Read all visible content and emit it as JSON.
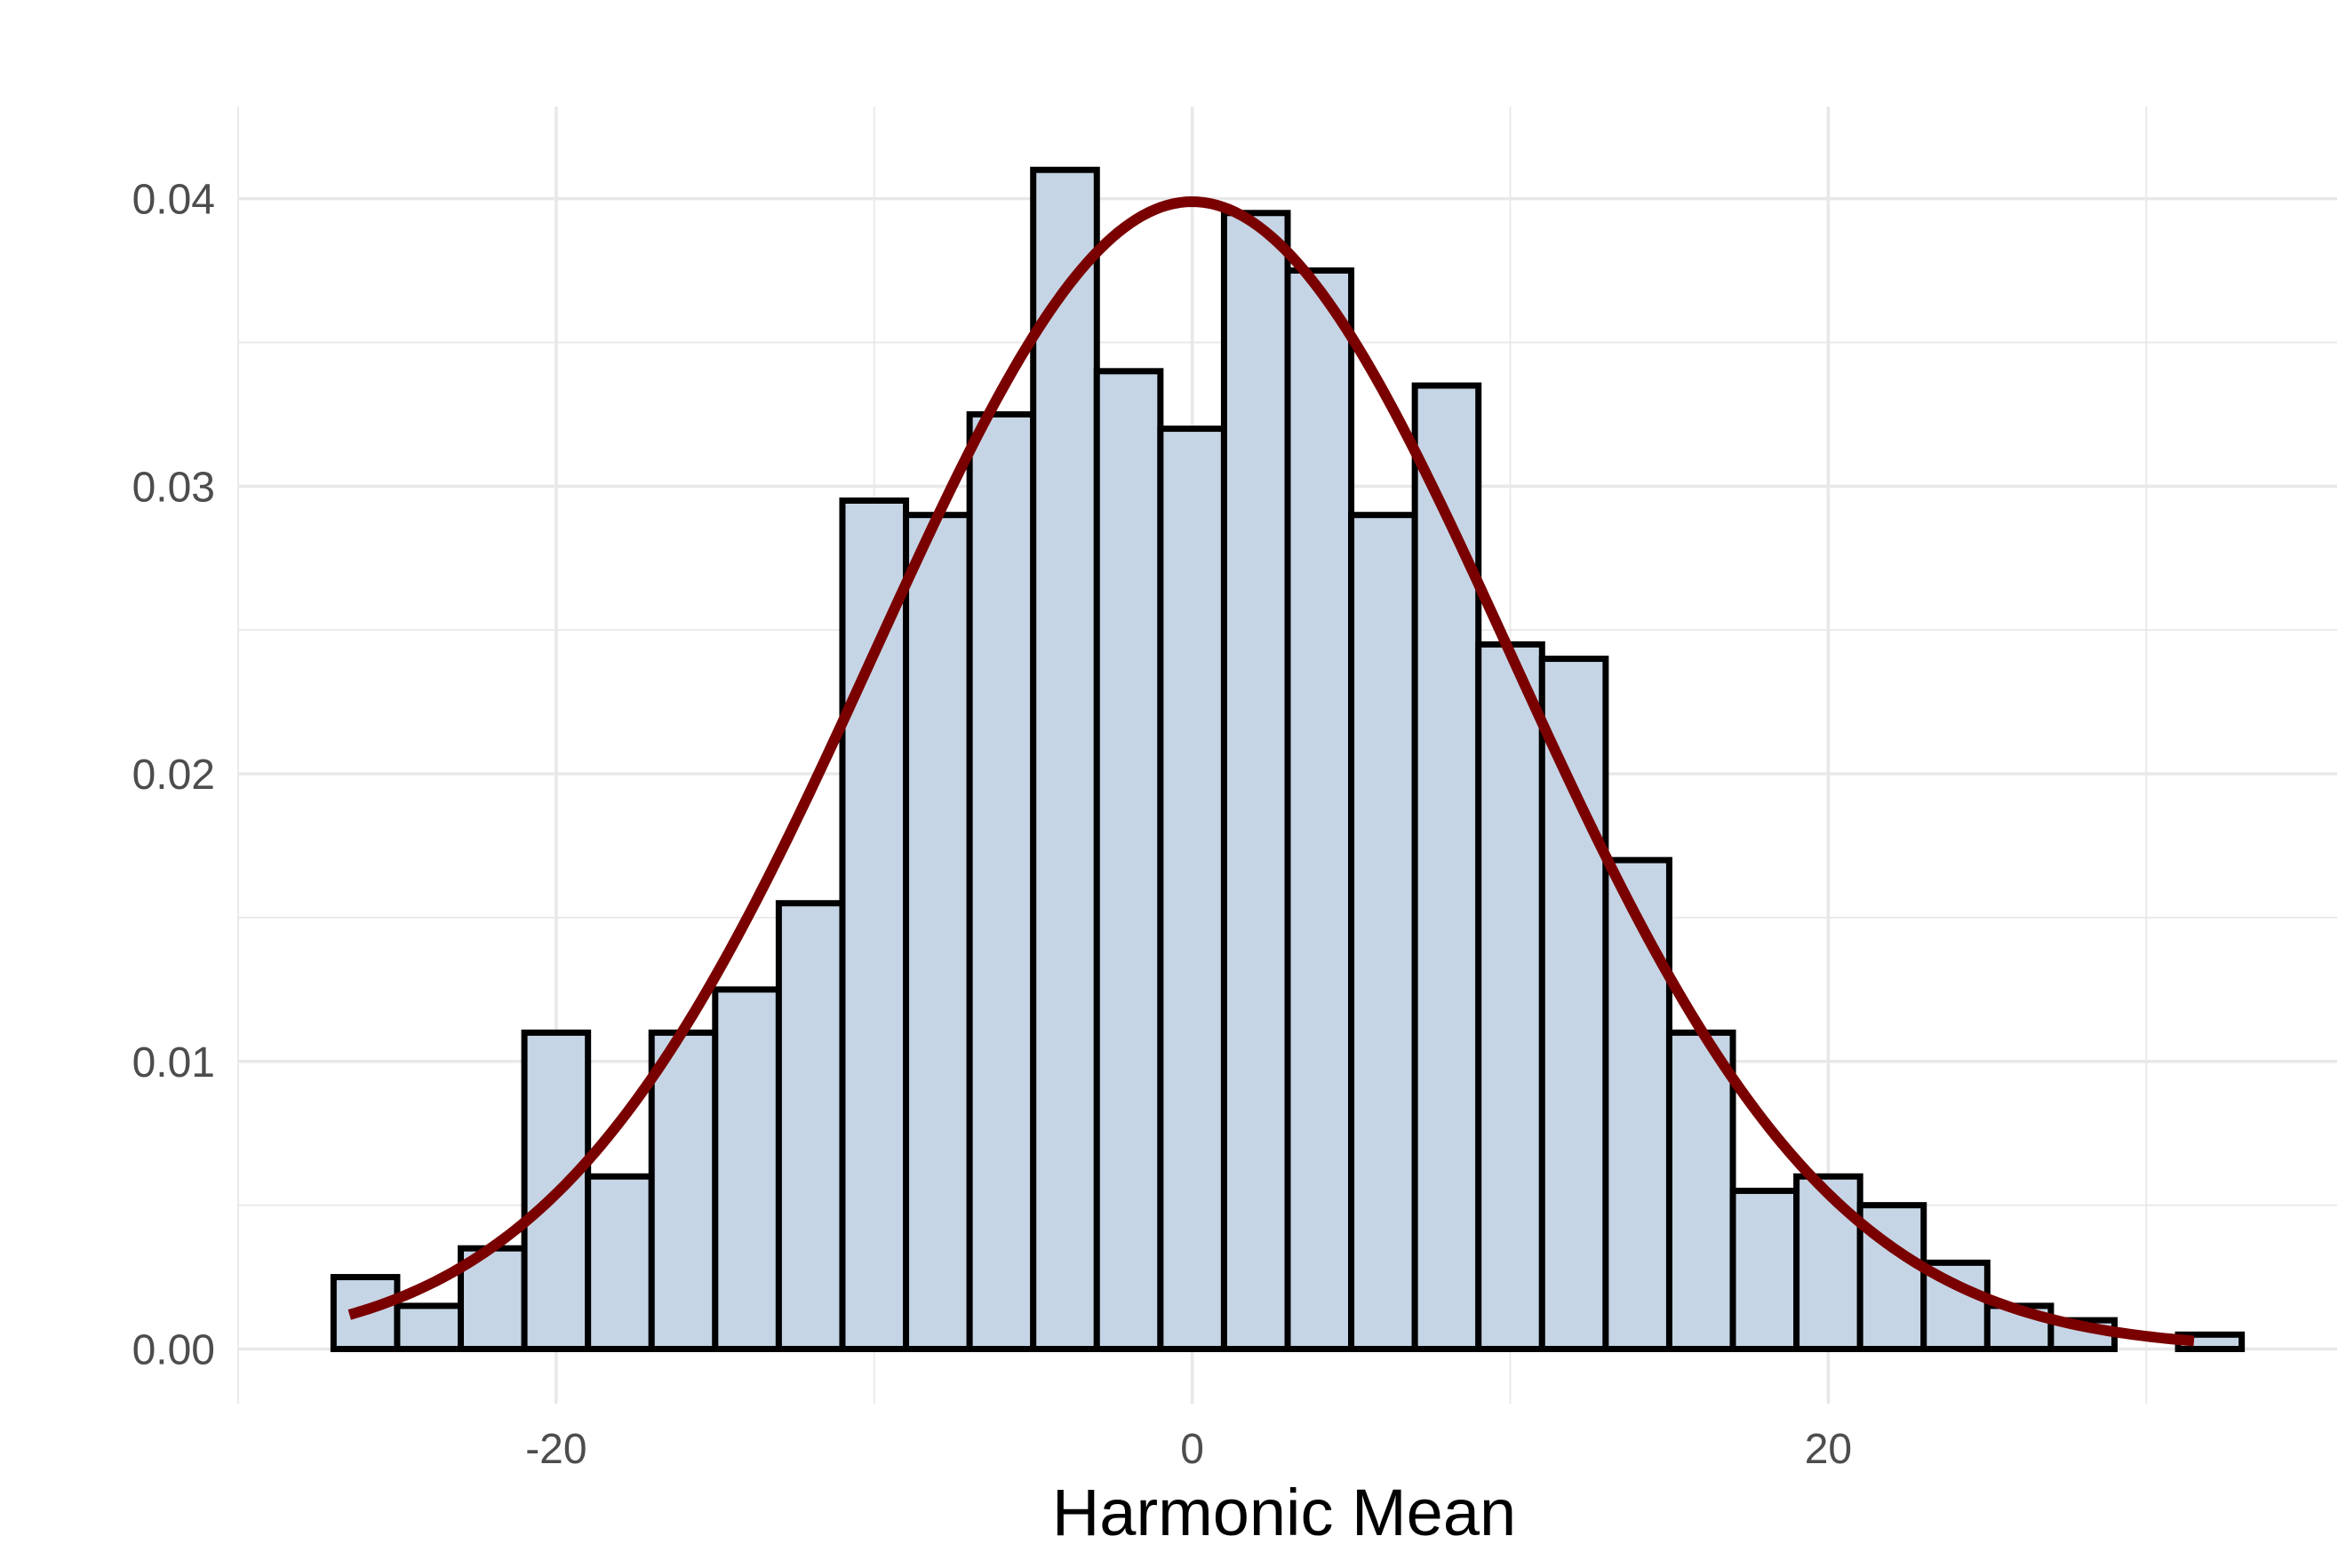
{
  "chart_data": {
    "type": "bar",
    "title": "",
    "xlabel": "Harmonic Mean",
    "ylabel": "",
    "xlim": [
      -30,
      36
    ],
    "ylim": [
      -0.0019,
      0.0432
    ],
    "grid": true,
    "legend": "none",
    "x_ticks": [
      -20,
      0,
      20
    ],
    "x_tick_labels": [
      "-20",
      "0",
      "20"
    ],
    "y_ticks": [
      0,
      0.01,
      0.02,
      0.03,
      0.04
    ],
    "y_tick_labels": [
      "0.00",
      "0.01",
      "0.02",
      "0.03",
      "0.04"
    ],
    "bin_width": 2,
    "bin_starts": [
      -27,
      -25,
      -23,
      -21,
      -19,
      -17,
      -15,
      -13,
      -11,
      -9,
      -7,
      -5,
      -3,
      -1,
      1,
      3,
      5,
      7,
      9,
      11,
      13,
      15,
      17,
      19,
      21,
      23,
      25,
      27,
      29,
      31
    ],
    "values": [
      0.0025,
      0.0015,
      0.0035,
      0.011,
      0.006,
      0.011,
      0.0125,
      0.0155,
      0.0295,
      0.029,
      0.0325,
      0.041,
      0.034,
      0.032,
      0.0395,
      0.0375,
      0.029,
      0.0335,
      0.0245,
      0.024,
      0.017,
      0.011,
      0.0055,
      0.006,
      0.005,
      0.003,
      0.0015,
      0.001,
      0.0,
      0.0005
    ],
    "curve": {
      "type": "normal-density",
      "mean": 0,
      "sd": 10,
      "x_range": [
        -26.5,
        31.5
      ]
    },
    "colors": {
      "bar_fill": "#c6d5e5",
      "bar_outline": "#000000",
      "curve": "#7a0000",
      "grid": "#e8e8e8",
      "background": "#ffffff"
    }
  }
}
